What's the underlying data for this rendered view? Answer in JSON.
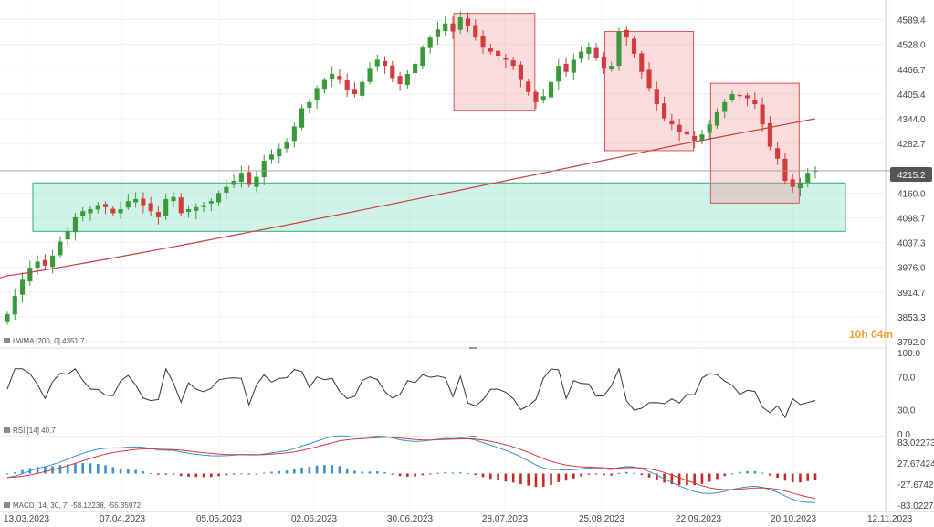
{
  "chart_data": {
    "type": "candlestick",
    "instrument_last_price": "4215.2",
    "countdown": "10h 04m",
    "x_ticks": [
      "13.03.2023",
      "07.04.2023",
      "05.05.2023",
      "02.06.2023",
      "30.06.2023",
      "28.07.2023",
      "25.08.2023",
      "22.09.2023",
      "20.10.2023",
      "12.11.2023"
    ],
    "price_ticks": [
      "4589.4",
      "4528.0",
      "4466.7",
      "4405.4",
      "4344.0",
      "4282.7",
      "4160.0",
      "4098.7",
      "4037.3",
      "3976.0",
      "3914.7",
      "3853.3",
      "3792.0"
    ],
    "price_range": [
      3792.0,
      4620.0
    ],
    "series_close": [
      3860,
      3905,
      3945,
      3975,
      3990,
      3980,
      4005,
      4040,
      4065,
      4100,
      4115,
      4120,
      4130,
      4125,
      4110,
      4120,
      4140,
      4145,
      4130,
      4115,
      4100,
      4145,
      4150,
      4110,
      4120,
      4125,
      4130,
      4140,
      4160,
      4175,
      4190,
      4210,
      4180,
      4200,
      4240,
      4255,
      4270,
      4285,
      4325,
      4370,
      4385,
      4420,
      4440,
      4455,
      4440,
      4415,
      4405,
      4435,
      4470,
      4490,
      4475,
      4445,
      4430,
      4455,
      4480,
      4520,
      4545,
      4565,
      4580,
      4560,
      4595,
      4575,
      4545,
      4520,
      4510,
      4500,
      4490,
      4475,
      4440,
      4410,
      4385,
      4400,
      4435,
      4475,
      4460,
      4490,
      4510,
      4520,
      4495,
      4470,
      4475,
      4560,
      4545,
      4505,
      4460,
      4420,
      4380,
      4345,
      4330,
      4310,
      4305,
      4290,
      4305,
      4330,
      4360,
      4385,
      4405,
      4400,
      4395,
      4380,
      4330,
      4275,
      4245,
      4190,
      4175,
      4185,
      4210,
      4215
    ],
    "lwma": {
      "label": "LWMA",
      "params": "[200, 0]",
      "value": "4351.7"
    },
    "rsi": {
      "label": "RSI",
      "params": "[14]",
      "value": "40.7",
      "ticks": [
        "100.0",
        "70.0",
        "30.0",
        "0.0"
      ],
      "range": [
        0,
        100
      ]
    },
    "macd": {
      "label": "MACD",
      "params": "[14, 30, 7]",
      "value1": "-58.12238",
      "value2": "-55.35972",
      "ticks": [
        "83.02273",
        "27.67424",
        "-27.6742",
        "-83.0227"
      ],
      "range": [
        -83.0227,
        83.02273
      ]
    },
    "zones": [
      {
        "kind": "support",
        "color": "#3fd1a0",
        "price_low": 4065,
        "price_high": 4185,
        "from_bar": 1,
        "to_bar": 107
      },
      {
        "kind": "pullback",
        "color": "#f28a8a",
        "price_low": 4365,
        "price_high": 4605,
        "from_bar": 60,
        "to_bar": 69
      },
      {
        "kind": "pullback",
        "color": "#f28a8a",
        "price_low": 4265,
        "price_high": 4560,
        "from_bar": 80,
        "to_bar": 90
      },
      {
        "kind": "pullback",
        "color": "#f28a8a",
        "price_low": 4135,
        "price_high": 4432,
        "from_bar": 94,
        "to_bar": 104
      }
    ],
    "colors": {
      "up": "#3a9a3a",
      "down": "#d23c3c",
      "lwma": "#c94040",
      "rsi": "#333333",
      "macd_line": "#3a8fd0",
      "macd_signal": "#d23c3c",
      "hist_pos": "#3a8fd0",
      "hist_neg": "#c62828",
      "last_price_bg": "#555555"
    }
  }
}
